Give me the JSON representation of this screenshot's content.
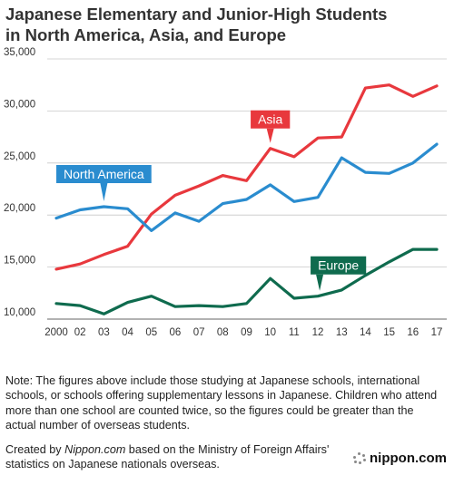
{
  "title_line1": "Japanese Elementary and Junior-High Students",
  "title_line2": "in North America, Asia, and Europe",
  "chart_data": {
    "type": "line",
    "x": [
      "2000",
      "02",
      "03",
      "04",
      "05",
      "06",
      "07",
      "08",
      "09",
      "10",
      "11",
      "12",
      "13",
      "14",
      "15",
      "16",
      "17"
    ],
    "yticks": [
      "10,000",
      "15,000",
      "20,000",
      "25,000",
      "30,000",
      "35,000"
    ],
    "ylim": [
      10000,
      35000
    ],
    "grid": true,
    "series": [
      {
        "name": "Asia",
        "color": "#e8383d",
        "values": [
          14800,
          15300,
          16200,
          17000,
          20100,
          21900,
          22800,
          23800,
          23300,
          26400,
          25600,
          27400,
          27500,
          32200,
          32500,
          31400,
          32400
        ]
      },
      {
        "name": "North America",
        "color": "#2a8ccf",
        "values": [
          19700,
          20500,
          20800,
          20600,
          18500,
          20200,
          19400,
          21100,
          21500,
          22900,
          21300,
          21700,
          25500,
          24100,
          24000,
          25000,
          26800
        ]
      },
      {
        "name": "Europe",
        "color": "#0f6b4e",
        "values": [
          11500,
          11300,
          10500,
          11600,
          12200,
          11200,
          11300,
          11200,
          11500,
          13900,
          12000,
          12200,
          12800,
          14200,
          15500,
          16700,
          16700
        ]
      }
    ]
  },
  "note": "Note: The figures above include those studying at Japanese schools, international schools, or schools offering supplementary lessons in Japanese. Children who attend more than one school are counted twice, so the figures could be greater than the actual number of overseas students.",
  "credit_prefix": "Created by ",
  "credit_site": "Nippon.com",
  "credit_suffix": " based on the Ministry of Foreign Affairs' statistics on Japanese nationals overseas.",
  "brand": "nippon.com",
  "brand_icon": "nippon-dots-icon"
}
